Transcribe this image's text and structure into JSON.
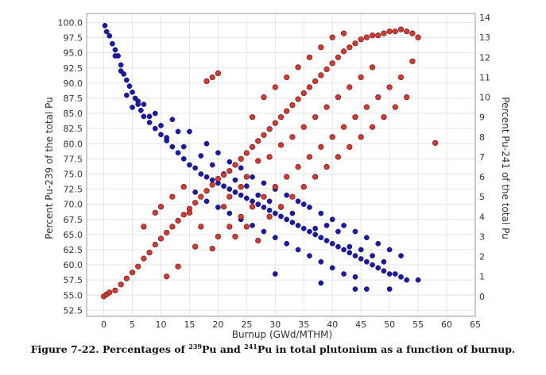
{
  "colors": {
    "pu239": "#1a1aa8",
    "pu241": "#d23a32",
    "grid": "#e6e6e6",
    "frame": "#999999"
  },
  "caption": {
    "prefix": "Figure 7-22. Percentages of ",
    "sup1": "239",
    "mid1": "Pu and ",
    "sup2": "241",
    "mid2": "Pu in total plutonium as a function of burnup."
  },
  "chart_data": {
    "type": "scatter",
    "title": "",
    "xlabel": "Burnup (GWd/MTHM)",
    "ylabel_left": "Percent Pu-239 of the total Pu",
    "ylabel_right": "Percent Pu-241 of the total Pu",
    "xlim": [
      -3,
      65
    ],
    "ylim_left": [
      51.5,
      101.5
    ],
    "ylim_right": [
      -1,
      14.2
    ],
    "x_ticks": [
      0,
      5,
      10,
      15,
      20,
      25,
      30,
      35,
      40,
      45,
      50,
      55,
      60,
      65
    ],
    "y_left_ticks": [
      52.5,
      55.0,
      57.5,
      60.0,
      62.5,
      65.0,
      67.5,
      70.0,
      72.5,
      75.0,
      77.5,
      80.0,
      82.5,
      85.0,
      87.5,
      90.0,
      92.5,
      95.0,
      97.5,
      100.0
    ],
    "y_left_tick_labels": [
      "52.5",
      "55.0",
      "57.5",
      "60.0",
      "62.5",
      "65.0",
      "67.5",
      "70.0",
      "72.5",
      "75.0",
      "77.5",
      "80.0",
      "82.5",
      "85.0",
      "87.5",
      "90.0",
      "92.5",
      "95.0",
      "97.5",
      "100.0"
    ],
    "y_right_ticks": [
      0,
      1,
      2,
      3,
      4,
      5,
      6,
      7,
      8,
      9,
      10,
      11,
      12,
      13,
      14
    ],
    "grid": true,
    "series": [
      {
        "axis": "left",
        "points": [
          [
            0.2,
            99.5
          ],
          [
            0.5,
            98.5
          ],
          [
            1,
            97.8
          ],
          [
            1.5,
            96.5
          ],
          [
            2,
            95.5
          ],
          [
            2.5,
            94.5
          ],
          [
            3,
            93
          ],
          [
            3.5,
            91.5
          ],
          [
            4,
            90.5
          ],
          [
            4.5,
            89.5
          ],
          [
            5,
            88.5
          ],
          [
            5.5,
            87.5
          ],
          [
            6,
            86.5
          ],
          [
            6.5,
            85.5
          ],
          [
            7,
            84.5
          ],
          [
            8,
            83.5
          ],
          [
            9,
            82.5
          ],
          [
            10,
            81.5
          ],
          [
            11,
            80.5
          ],
          [
            12,
            79.5
          ],
          [
            13,
            78.5
          ],
          [
            14,
            77.5
          ],
          [
            15,
            76.5
          ],
          [
            16,
            76
          ],
          [
            17,
            75
          ],
          [
            18,
            74.5
          ],
          [
            19,
            74
          ],
          [
            20,
            73.5
          ],
          [
            21,
            73
          ],
          [
            22,
            72.5
          ],
          [
            23,
            72
          ],
          [
            24,
            71.5
          ],
          [
            25,
            71
          ],
          [
            26,
            70.5
          ],
          [
            27,
            70
          ],
          [
            28,
            69.5
          ],
          [
            29,
            69
          ],
          [
            30,
            68.5
          ],
          [
            31,
            68
          ],
          [
            32,
            67.5
          ],
          [
            33,
            67
          ],
          [
            34,
            66.5
          ],
          [
            35,
            66
          ],
          [
            36,
            65.5
          ],
          [
            37,
            65
          ],
          [
            38,
            64.5
          ],
          [
            39,
            64
          ],
          [
            40,
            63.5
          ],
          [
            41,
            63
          ],
          [
            42,
            62.5
          ],
          [
            43,
            62
          ],
          [
            44,
            61.5
          ],
          [
            45,
            61
          ],
          [
            46,
            60.5
          ],
          [
            47,
            60
          ],
          [
            48,
            59.5
          ],
          [
            49,
            59
          ],
          [
            50,
            58.5
          ],
          [
            51,
            58.5
          ],
          [
            52,
            58
          ],
          [
            53,
            57.5
          ],
          [
            55,
            57.5
          ],
          [
            30,
            58.5
          ],
          [
            38,
            57
          ],
          [
            44,
            56
          ],
          [
            46,
            56
          ],
          [
            50,
            56
          ],
          [
            4,
            88
          ],
          [
            5,
            86
          ],
          [
            7,
            86.5
          ],
          [
            9,
            85
          ],
          [
            12,
            84
          ],
          [
            15,
            82
          ],
          [
            18,
            80
          ],
          [
            20,
            78.5
          ],
          [
            22,
            77
          ],
          [
            24,
            76
          ],
          [
            26,
            74.5
          ],
          [
            28,
            73.5
          ],
          [
            30,
            72.5
          ],
          [
            32,
            71.5
          ],
          [
            34,
            70.5
          ],
          [
            36,
            69.5
          ],
          [
            38,
            68.5
          ],
          [
            40,
            67.5
          ],
          [
            42,
            66.5
          ],
          [
            44,
            65.5
          ],
          [
            46,
            64.5
          ],
          [
            48,
            63.5
          ],
          [
            50,
            62.5
          ],
          [
            52,
            61.5
          ],
          [
            16,
            72
          ],
          [
            18,
            70.5
          ],
          [
            20,
            69.5
          ],
          [
            22,
            68.5
          ],
          [
            24,
            67.5
          ],
          [
            26,
            66.5
          ],
          [
            28,
            65.5
          ],
          [
            30,
            64.5
          ],
          [
            32,
            63.5
          ],
          [
            34,
            62.5
          ],
          [
            36,
            61.5
          ],
          [
            38,
            60.5
          ],
          [
            40,
            59.5
          ],
          [
            42,
            58.5
          ],
          [
            44,
            58
          ],
          [
            23,
            74
          ],
          [
            27,
            71.5
          ],
          [
            33,
            68.5
          ],
          [
            37,
            66
          ],
          [
            43,
            63
          ],
          [
            47,
            61.5
          ],
          [
            35,
            70
          ],
          [
            41,
            65.5
          ],
          [
            45,
            62.5
          ],
          [
            25,
            73
          ],
          [
            29,
            70.5
          ],
          [
            31,
            69.5
          ],
          [
            39,
            66.5
          ],
          [
            49,
            60.5
          ],
          [
            21,
            75
          ],
          [
            19,
            76.5
          ],
          [
            17,
            78
          ],
          [
            14,
            79.5
          ],
          [
            11,
            81
          ],
          [
            13,
            82
          ],
          [
            10,
            83
          ],
          [
            8,
            84.5
          ],
          [
            6,
            87
          ],
          [
            3,
            92
          ],
          [
            2,
            94.5
          ]
        ]
      },
      {
        "axis": "right",
        "points": [
          [
            0,
            0
          ],
          [
            0.5,
            0.1
          ],
          [
            1,
            0.2
          ],
          [
            2,
            0.3
          ],
          [
            3,
            0.6
          ],
          [
            4,
            0.9
          ],
          [
            5,
            1.2
          ],
          [
            6,
            1.5
          ],
          [
            7,
            1.9
          ],
          [
            8,
            2.2
          ],
          [
            9,
            2.6
          ],
          [
            10,
            2.9
          ],
          [
            11,
            3.2
          ],
          [
            12,
            3.5
          ],
          [
            13,
            3.8
          ],
          [
            14,
            4.1
          ],
          [
            15,
            4.4
          ],
          [
            16,
            4.7
          ],
          [
            17,
            5
          ],
          [
            18,
            5.3
          ],
          [
            19,
            5.6
          ],
          [
            20,
            5.9
          ],
          [
            21,
            6.1
          ],
          [
            22,
            6.3
          ],
          [
            23,
            6.6
          ],
          [
            24,
            6.9
          ],
          [
            25,
            7.2
          ],
          [
            26,
            7.5
          ],
          [
            27,
            7.8
          ],
          [
            28,
            8.1
          ],
          [
            29,
            8.4
          ],
          [
            30,
            8.7
          ],
          [
            31,
            9
          ],
          [
            32,
            9.3
          ],
          [
            33,
            9.6
          ],
          [
            34,
            9.9
          ],
          [
            35,
            10.2
          ],
          [
            36,
            10.5
          ],
          [
            37,
            10.8
          ],
          [
            38,
            11.1
          ],
          [
            39,
            11.4
          ],
          [
            40,
            11.7
          ],
          [
            41,
            12
          ],
          [
            42,
            12.3
          ],
          [
            43,
            12.5
          ],
          [
            44,
            12.7
          ],
          [
            45,
            12.9
          ],
          [
            46,
            13
          ],
          [
            47,
            13.1
          ],
          [
            48,
            13.1
          ],
          [
            49,
            13.2
          ],
          [
            50,
            13.3
          ],
          [
            51,
            13.3
          ],
          [
            52,
            13.4
          ],
          [
            53,
            13.3
          ],
          [
            54,
            13.2
          ],
          [
            55,
            13
          ],
          [
            58,
            7.7
          ],
          [
            7,
            3.5
          ],
          [
            9,
            4.2
          ],
          [
            10,
            4.5
          ],
          [
            12,
            5
          ],
          [
            14,
            5.5
          ],
          [
            15,
            4.2
          ],
          [
            17,
            3.5
          ],
          [
            16,
            2.5
          ],
          [
            19,
            2.4
          ],
          [
            20,
            3
          ],
          [
            22,
            3.5
          ],
          [
            24,
            4
          ],
          [
            26,
            4.5
          ],
          [
            28,
            5
          ],
          [
            30,
            5.5
          ],
          [
            32,
            6
          ],
          [
            34,
            6.5
          ],
          [
            36,
            7
          ],
          [
            38,
            7.5
          ],
          [
            40,
            8
          ],
          [
            42,
            8.5
          ],
          [
            44,
            9
          ],
          [
            46,
            9.5
          ],
          [
            48,
            10
          ],
          [
            50,
            10.5
          ],
          [
            52,
            11
          ],
          [
            54,
            11.8
          ],
          [
            18,
            10.8
          ],
          [
            19,
            11
          ],
          [
            20,
            11.2
          ],
          [
            11,
            1
          ],
          [
            13,
            1.5
          ],
          [
            29,
            4
          ],
          [
            31,
            4.5
          ],
          [
            33,
            5
          ],
          [
            35,
            5.5
          ],
          [
            37,
            6
          ],
          [
            39,
            6.5
          ],
          [
            41,
            7
          ],
          [
            43,
            7.5
          ],
          [
            45,
            8
          ],
          [
            47,
            8.5
          ],
          [
            49,
            9
          ],
          [
            51,
            9.5
          ],
          [
            53,
            10
          ],
          [
            26,
            9
          ],
          [
            28,
            10
          ],
          [
            30,
            10.5
          ],
          [
            32,
            11
          ],
          [
            34,
            11.5
          ],
          [
            36,
            12
          ],
          [
            38,
            12.5
          ],
          [
            40,
            13
          ],
          [
            42,
            13.2
          ],
          [
            25,
            6
          ],
          [
            27,
            6.8
          ],
          [
            29,
            7
          ],
          [
            31,
            7.6
          ],
          [
            33,
            8
          ],
          [
            35,
            8.5
          ],
          [
            37,
            9
          ],
          [
            39,
            9.5
          ],
          [
            41,
            10
          ],
          [
            43,
            10.5
          ],
          [
            45,
            11
          ],
          [
            47,
            11.5
          ],
          [
            22,
            5
          ],
          [
            24,
            5.5
          ],
          [
            21,
            4.5
          ],
          [
            23,
            3
          ],
          [
            25,
            3.5
          ],
          [
            27,
            2.8
          ]
        ]
      }
    ]
  }
}
